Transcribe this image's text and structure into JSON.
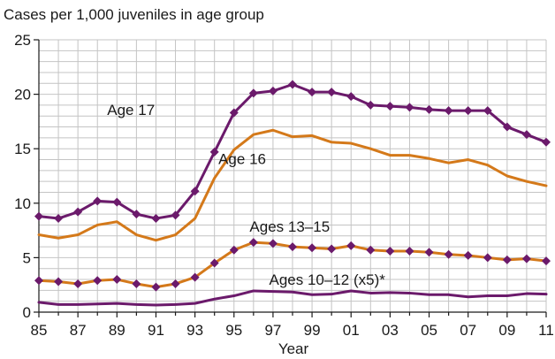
{
  "chart_data": {
    "type": "line",
    "title": "",
    "ylabel": "Cases per 1,000 juveniles in age group",
    "xlabel": "Year",
    "ylim": [
      0,
      25
    ],
    "yticks": [
      "0",
      "5",
      "10",
      "15",
      "20",
      "25"
    ],
    "x": [
      1985,
      1986,
      1987,
      1988,
      1989,
      1990,
      1991,
      1992,
      1993,
      1994,
      1995,
      1996,
      1997,
      1998,
      1999,
      2000,
      2001,
      2002,
      2003,
      2004,
      2005,
      2006,
      2007,
      2008,
      2009,
      2010,
      2011
    ],
    "xticks": [
      "85",
      "87",
      "89",
      "91",
      "93",
      "95",
      "97",
      "99",
      "01",
      "03",
      "05",
      "07",
      "09",
      "11"
    ],
    "grid": true,
    "series": [
      {
        "name": "Age 17",
        "color": "#6b1a6b",
        "marker": "diamond",
        "values": [
          8.8,
          8.6,
          9.2,
          10.2,
          10.1,
          9.0,
          8.6,
          8.9,
          11.1,
          14.7,
          18.3,
          20.1,
          20.3,
          20.9,
          20.2,
          20.2,
          19.8,
          19.0,
          18.9,
          18.8,
          18.6,
          18.5,
          18.5,
          18.5,
          17.0,
          16.3,
          15.6
        ]
      },
      {
        "name": "Age 16",
        "color": "#d4791a",
        "marker": "none",
        "values": [
          7.1,
          6.8,
          7.1,
          8.0,
          8.3,
          7.1,
          6.6,
          7.1,
          8.6,
          12.3,
          14.9,
          16.3,
          16.7,
          16.1,
          16.2,
          15.6,
          15.5,
          15.0,
          14.4,
          14.4,
          14.1,
          13.7,
          14.0,
          13.5,
          12.5,
          12.0,
          11.6
        ]
      },
      {
        "name": "Ages 13–15",
        "color": "#d4791a",
        "marker": "diamond",
        "marker_color": "#6b1a6b",
        "values": [
          2.9,
          2.8,
          2.6,
          2.9,
          3.0,
          2.6,
          2.3,
          2.6,
          3.2,
          4.5,
          5.7,
          6.4,
          6.3,
          6.0,
          5.9,
          5.8,
          6.1,
          5.7,
          5.6,
          5.6,
          5.5,
          5.3,
          5.2,
          5.0,
          4.8,
          4.9,
          4.7
        ]
      },
      {
        "name": "Ages 10–12 (x5)*",
        "color": "#6b1a6b",
        "marker": "none",
        "values": [
          0.9,
          0.7,
          0.7,
          0.75,
          0.8,
          0.7,
          0.65,
          0.7,
          0.8,
          1.2,
          1.5,
          1.95,
          1.9,
          1.85,
          1.6,
          1.65,
          1.95,
          1.75,
          1.8,
          1.75,
          1.6,
          1.6,
          1.4,
          1.5,
          1.5,
          1.7,
          1.65
        ]
      }
    ]
  }
}
